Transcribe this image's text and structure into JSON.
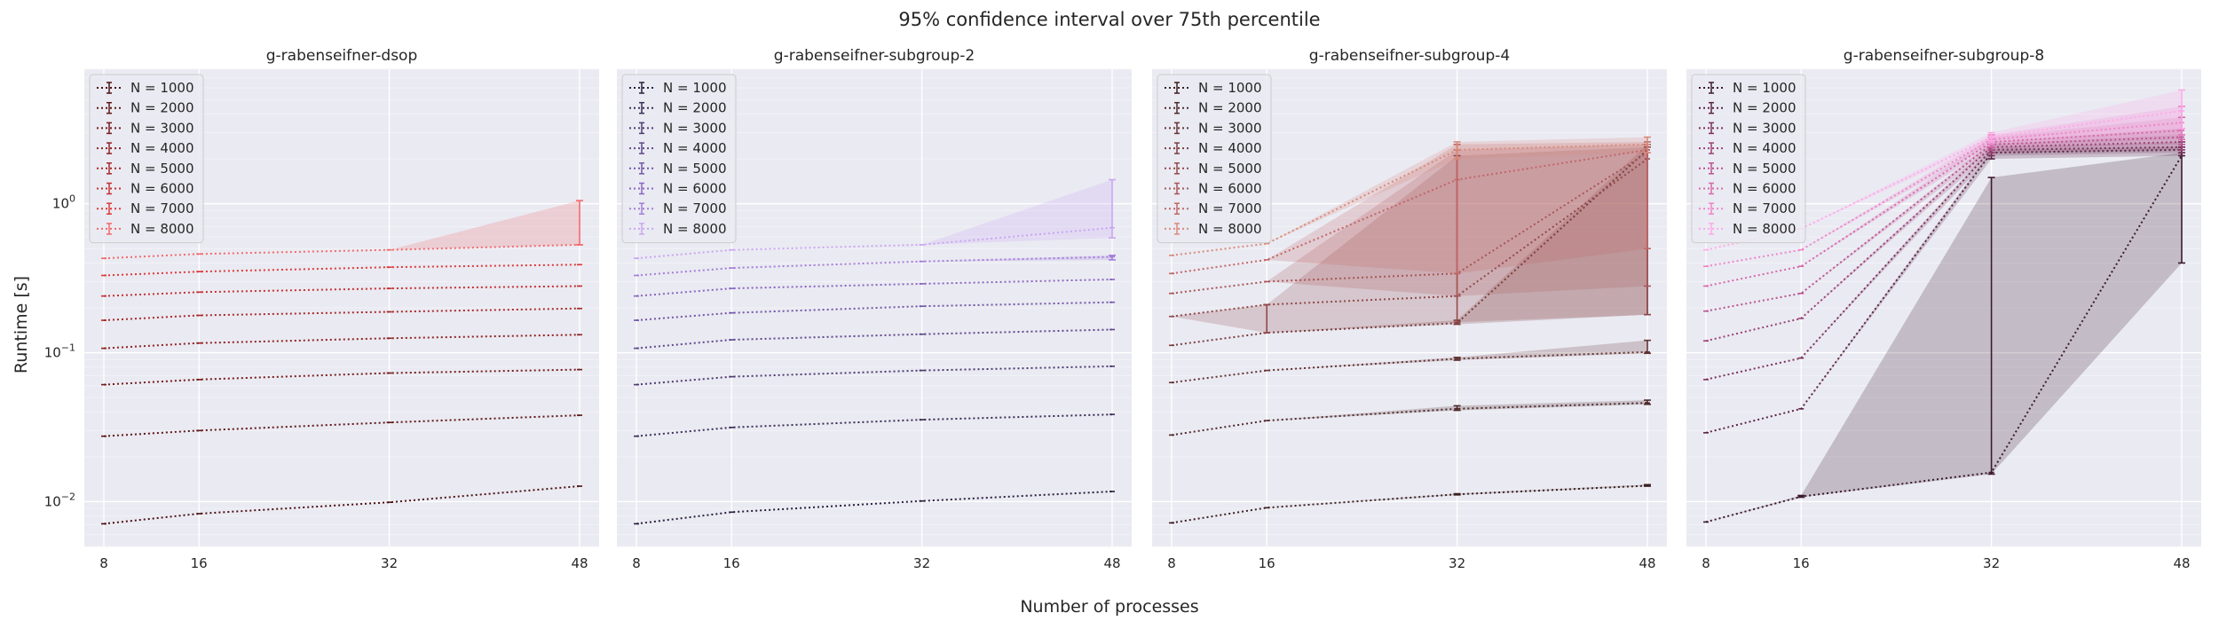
{
  "figure": {
    "title": "95% confidence interval over 75th percentile",
    "xlabel": "Number of processes",
    "ylabel": "Runtime [s]"
  },
  "chart_data": [
    {
      "type": "line",
      "title": "g-rabenseifner-dsop",
      "x": [
        8,
        16,
        32,
        48
      ],
      "xticks": [
        "8",
        "16",
        "32",
        "48"
      ],
      "yscale": "log",
      "ylim": [
        0.005,
        8
      ],
      "grid": true,
      "legend_position": "top-left",
      "colors": [
        "#4a1212",
        "#5e1616",
        "#751b1b",
        "#8f2222",
        "#a82929",
        "#c43131",
        "#dd3a3a",
        "#f26a6a"
      ],
      "series": [
        {
          "name": "N = 1000",
          "values": [
            0.0071,
            0.0083,
            0.0099,
            0.0127
          ],
          "lower": [
            0.0071,
            0.0083,
            0.0099,
            0.0127
          ],
          "upper": [
            0.0071,
            0.0083,
            0.0099,
            0.0127
          ]
        },
        {
          "name": "N = 2000",
          "values": [
            0.0275,
            0.03,
            0.034,
            0.038
          ],
          "lower": [
            0.0275,
            0.03,
            0.034,
            0.038
          ],
          "upper": [
            0.0275,
            0.03,
            0.034,
            0.038
          ]
        },
        {
          "name": "N = 3000",
          "values": [
            0.061,
            0.066,
            0.073,
            0.077
          ],
          "lower": [
            0.061,
            0.066,
            0.073,
            0.077
          ],
          "upper": [
            0.061,
            0.066,
            0.073,
            0.077
          ]
        },
        {
          "name": "N = 4000",
          "values": [
            0.107,
            0.116,
            0.125,
            0.132
          ],
          "lower": [
            0.107,
            0.116,
            0.125,
            0.132
          ],
          "upper": [
            0.107,
            0.116,
            0.125,
            0.132
          ]
        },
        {
          "name": "N = 5000",
          "values": [
            0.165,
            0.178,
            0.188,
            0.198
          ],
          "lower": [
            0.165,
            0.178,
            0.188,
            0.198
          ],
          "upper": [
            0.165,
            0.178,
            0.188,
            0.198
          ]
        },
        {
          "name": "N = 6000",
          "values": [
            0.24,
            0.255,
            0.27,
            0.28
          ],
          "lower": [
            0.24,
            0.255,
            0.27,
            0.28
          ],
          "upper": [
            0.24,
            0.255,
            0.27,
            0.28
          ]
        },
        {
          "name": "N = 7000",
          "values": [
            0.33,
            0.35,
            0.375,
            0.39
          ],
          "lower": [
            0.33,
            0.35,
            0.375,
            0.39
          ],
          "upper": [
            0.33,
            0.35,
            0.375,
            0.39
          ]
        },
        {
          "name": "N = 8000",
          "values": [
            0.43,
            0.46,
            0.49,
            0.53
          ],
          "lower": [
            0.43,
            0.46,
            0.49,
            0.53
          ],
          "upper": [
            0.43,
            0.46,
            0.49,
            1.05
          ]
        }
      ]
    },
    {
      "type": "line",
      "title": "g-rabenseifner-subgroup-2",
      "x": [
        8,
        16,
        32,
        48
      ],
      "xticks": [
        "8",
        "16",
        "32",
        "48"
      ],
      "yscale": "log",
      "ylim": [
        0.005,
        8
      ],
      "grid": true,
      "legend_position": "top-left",
      "colors": [
        "#2a1f3d",
        "#3b2d57",
        "#4d3a72",
        "#5f488d",
        "#7257a8",
        "#8866c2",
        "#a27ed9",
        "#c9a6f2"
      ],
      "series": [
        {
          "name": "N = 1000",
          "values": [
            0.0071,
            0.0085,
            0.0101,
            0.0117
          ],
          "lower": [
            0.0071,
            0.0085,
            0.0101,
            0.0117
          ],
          "upper": [
            0.0071,
            0.0085,
            0.0101,
            0.0117
          ]
        },
        {
          "name": "N = 2000",
          "values": [
            0.0275,
            0.0315,
            0.0355,
            0.0385
          ],
          "lower": [
            0.0275,
            0.0315,
            0.0355,
            0.0385
          ],
          "upper": [
            0.0275,
            0.0315,
            0.0355,
            0.0385
          ]
        },
        {
          "name": "N = 3000",
          "values": [
            0.061,
            0.069,
            0.076,
            0.081
          ],
          "lower": [
            0.061,
            0.069,
            0.076,
            0.081
          ],
          "upper": [
            0.061,
            0.069,
            0.076,
            0.081
          ]
        },
        {
          "name": "N = 4000",
          "values": [
            0.107,
            0.122,
            0.133,
            0.143
          ],
          "lower": [
            0.107,
            0.122,
            0.133,
            0.143
          ],
          "upper": [
            0.107,
            0.122,
            0.133,
            0.143
          ]
        },
        {
          "name": "N = 5000",
          "values": [
            0.165,
            0.185,
            0.205,
            0.218
          ],
          "lower": [
            0.165,
            0.185,
            0.205,
            0.218
          ],
          "upper": [
            0.165,
            0.185,
            0.205,
            0.218
          ]
        },
        {
          "name": "N = 6000",
          "values": [
            0.24,
            0.27,
            0.29,
            0.31
          ],
          "lower": [
            0.24,
            0.27,
            0.29,
            0.31
          ],
          "upper": [
            0.24,
            0.27,
            0.29,
            0.31
          ]
        },
        {
          "name": "N = 7000",
          "values": [
            0.33,
            0.37,
            0.41,
            0.44
          ],
          "lower": [
            0.33,
            0.37,
            0.41,
            0.42
          ],
          "upper": [
            0.33,
            0.37,
            0.41,
            0.45
          ]
        },
        {
          "name": "N = 8000",
          "values": [
            0.43,
            0.49,
            0.53,
            0.69
          ],
          "lower": [
            0.43,
            0.49,
            0.53,
            0.59
          ],
          "upper": [
            0.43,
            0.49,
            0.53,
            1.45
          ]
        }
      ]
    },
    {
      "type": "line",
      "title": "g-rabenseifner-subgroup-4",
      "x": [
        8,
        16,
        32,
        48
      ],
      "xticks": [
        "8",
        "16",
        "32",
        "48"
      ],
      "yscale": "log",
      "ylim": [
        0.005,
        8
      ],
      "grid": true,
      "legend_position": "top-left",
      "colors": [
        "#3a2020",
        "#4e2a2a",
        "#633434",
        "#7a3f3f",
        "#914a4a",
        "#a85656",
        "#c26666",
        "#d98a7a"
      ],
      "series": [
        {
          "name": "N = 1000",
          "values": [
            0.0072,
            0.0091,
            0.0112,
            0.0128
          ],
          "lower": [
            0.0072,
            0.0091,
            0.0111,
            0.0127
          ],
          "upper": [
            0.0072,
            0.0091,
            0.0113,
            0.013
          ]
        },
        {
          "name": "N = 2000",
          "values": [
            0.028,
            0.035,
            0.042,
            0.046
          ],
          "lower": [
            0.028,
            0.035,
            0.041,
            0.045
          ],
          "upper": [
            0.028,
            0.035,
            0.044,
            0.048
          ]
        },
        {
          "name": "N = 3000",
          "values": [
            0.063,
            0.076,
            0.091,
            0.101
          ],
          "lower": [
            0.063,
            0.076,
            0.089,
            0.099
          ],
          "upper": [
            0.063,
            0.076,
            0.093,
            0.121
          ]
        },
        {
          "name": "N = 4000",
          "values": [
            0.112,
            0.136,
            0.158,
            2.3
          ],
          "lower": [
            0.112,
            0.136,
            0.155,
            0.18
          ],
          "upper": [
            0.112,
            0.136,
            0.165,
            2.5
          ]
        },
        {
          "name": "N = 5000",
          "values": [
            0.175,
            0.21,
            0.24,
            2.0
          ],
          "lower": [
            0.175,
            0.136,
            0.16,
            0.18
          ],
          "upper": [
            0.175,
            0.21,
            2.1,
            2.4
          ]
        },
        {
          "name": "N = 6000",
          "values": [
            0.25,
            0.3,
            0.34,
            2.2
          ],
          "lower": [
            0.25,
            0.3,
            0.24,
            0.28
          ],
          "upper": [
            0.25,
            0.3,
            2.3,
            2.5
          ]
        },
        {
          "name": "N = 7000",
          "values": [
            0.34,
            0.42,
            1.45,
            2.3
          ],
          "lower": [
            0.34,
            0.42,
            0.34,
            0.5
          ],
          "upper": [
            0.34,
            0.42,
            2.5,
            2.6
          ]
        },
        {
          "name": "N = 8000",
          "values": [
            0.45,
            0.54,
            2.3,
            2.5
          ],
          "lower": [
            0.45,
            0.54,
            2.0,
            2.2
          ],
          "upper": [
            0.45,
            0.54,
            2.6,
            2.8
          ]
        }
      ]
    },
    {
      "type": "line",
      "title": "g-rabenseifner-subgroup-8",
      "x": [
        8,
        16,
        32,
        48
      ],
      "xticks": [
        "8",
        "16",
        "32",
        "48"
      ],
      "yscale": "log",
      "ylim": [
        0.005,
        8
      ],
      "grid": true,
      "legend_position": "top-left",
      "colors": [
        "#3d1a2e",
        "#5a2544",
        "#7a325c",
        "#9a4275",
        "#ba5590",
        "#d66aab",
        "#ee85c8",
        "#ffa9e8"
      ],
      "series": [
        {
          "name": "N = 1000",
          "values": [
            0.0073,
            0.0108,
            0.0157,
            2.1
          ],
          "lower": [
            0.0073,
            0.0107,
            0.0153,
            0.4
          ],
          "upper": [
            0.0073,
            0.011,
            1.5,
            2.2
          ]
        },
        {
          "name": "N = 2000",
          "values": [
            0.029,
            0.042,
            2.2,
            2.3
          ],
          "lower": [
            0.029,
            0.042,
            2.0,
            2.1
          ],
          "upper": [
            0.029,
            0.042,
            2.3,
            2.4
          ]
        },
        {
          "name": "N = 3000",
          "values": [
            0.066,
            0.092,
            2.3,
            2.4
          ],
          "lower": [
            0.066,
            0.092,
            2.1,
            2.2
          ],
          "upper": [
            0.066,
            0.092,
            2.4,
            2.6
          ]
        },
        {
          "name": "N = 4000",
          "values": [
            0.12,
            0.17,
            2.4,
            2.6
          ],
          "lower": [
            0.12,
            0.17,
            2.2,
            2.3
          ],
          "upper": [
            0.12,
            0.17,
            2.5,
            2.9
          ]
        },
        {
          "name": "N = 5000",
          "values": [
            0.19,
            0.25,
            2.5,
            2.8
          ],
          "lower": [
            0.19,
            0.25,
            2.3,
            2.5
          ],
          "upper": [
            0.19,
            0.25,
            2.6,
            3.2
          ]
        },
        {
          "name": "N = 6000",
          "values": [
            0.28,
            0.38,
            2.6,
            3.1
          ],
          "lower": [
            0.28,
            0.38,
            2.4,
            2.7
          ],
          "upper": [
            0.28,
            0.38,
            2.8,
            3.8
          ]
        },
        {
          "name": "N = 7000",
          "values": [
            0.38,
            0.49,
            2.7,
            3.5
          ],
          "lower": [
            0.38,
            0.49,
            2.5,
            2.9
          ],
          "upper": [
            0.38,
            0.49,
            2.9,
            4.5
          ]
        },
        {
          "name": "N = 8000",
          "values": [
            0.49,
            0.68,
            2.8,
            4.2
          ],
          "lower": [
            0.49,
            0.68,
            2.6,
            3.2
          ],
          "upper": [
            0.49,
            0.68,
            3.0,
            5.8
          ]
        }
      ]
    }
  ]
}
